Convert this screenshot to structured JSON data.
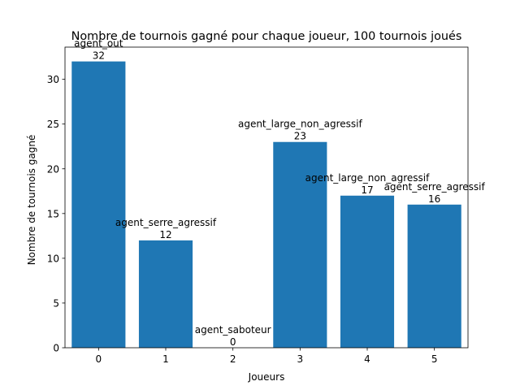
{
  "chart_data": {
    "type": "bar",
    "title": "Nombre de tournois gagné pour chaque joueur, 100 tournois joués",
    "xlabel": "Joueurs",
    "ylabel": "Nombre de tournois gagné",
    "categories": [
      "0",
      "1",
      "2",
      "3",
      "4",
      "5"
    ],
    "values": [
      32,
      12,
      0,
      23,
      17,
      16
    ],
    "bar_labels": [
      "agent_out",
      "agent_serre_agressif",
      "agent_saboteur",
      "agent_large_non_agressif",
      "agent_large_non_agressif",
      "agent_serre_agressif"
    ],
    "value_labels": [
      "32",
      "12",
      "0",
      "23",
      "17",
      "16"
    ],
    "xlim": [
      -0.5,
      5.5
    ],
    "ylim": [
      0,
      33.6
    ],
    "yticks": [
      0,
      5,
      10,
      15,
      20,
      25,
      30
    ],
    "ytick_labels": [
      "0",
      "5",
      "10",
      "15",
      "20",
      "25",
      "30"
    ],
    "grid": false,
    "bar_color": "#1f77b4"
  }
}
